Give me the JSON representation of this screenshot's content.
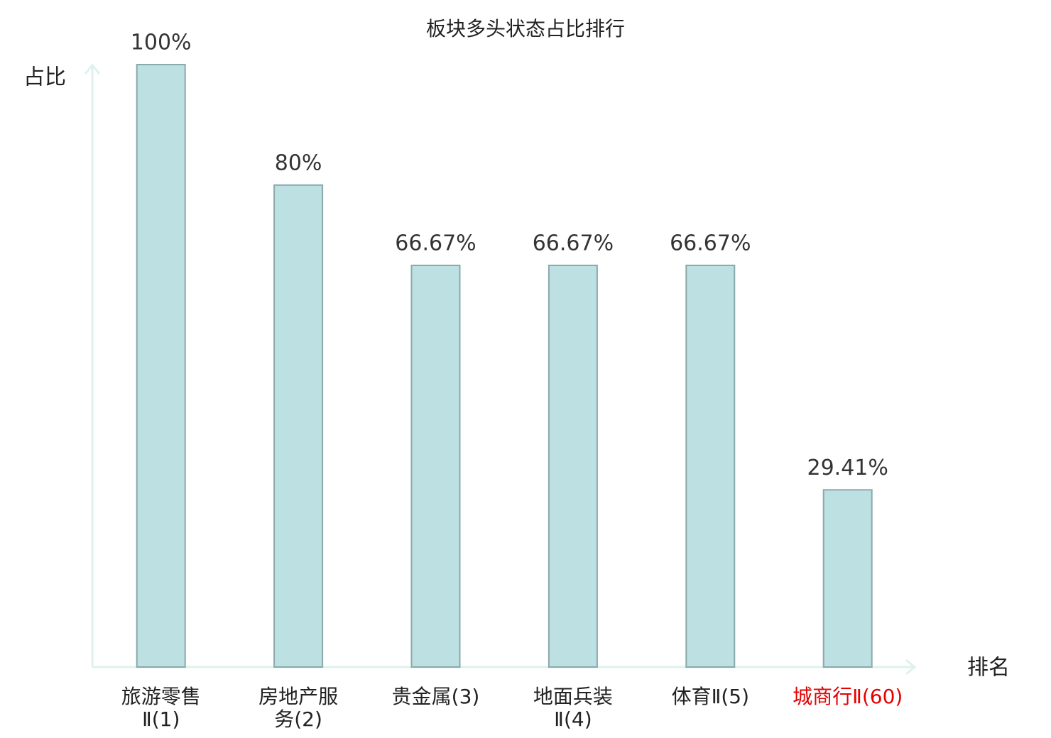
{
  "chart_data": {
    "type": "bar",
    "title": "板块多头状态占比排行",
    "y_label": "占比",
    "x_label": "排名",
    "categories": [
      "旅游零售Ⅱ(1)",
      "房地产服务(2)",
      "贵金属(3)",
      "地面兵装Ⅱ(4)",
      "体育Ⅱ(5)",
      "城商行Ⅱ(60)"
    ],
    "values": [
      100,
      80,
      66.67,
      66.67,
      66.67,
      29.41
    ],
    "value_labels": [
      "100%",
      "80%",
      "66.67%",
      "66.67%",
      "66.67%",
      "29.41%"
    ],
    "color": "#bde0e3",
    "edge_color": "#8aa9ab",
    "highlight_index": 5,
    "highlight_color": "#e60000",
    "ylim": [
      0,
      100
    ]
  }
}
